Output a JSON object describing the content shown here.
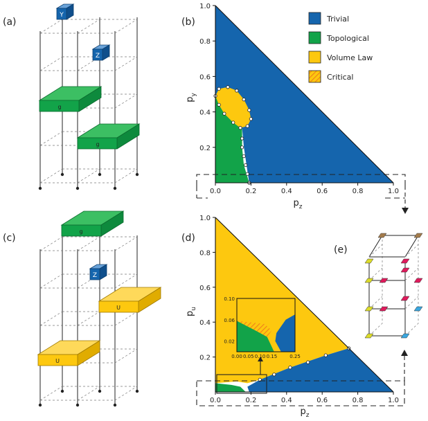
{
  "panel_labels": {
    "a": "(a)",
    "b": "(b)",
    "c": "(c)",
    "d": "(d)",
    "e": "(e)"
  },
  "circuit_a": {
    "gate_y": "Y",
    "gate_z": "Z",
    "gate_g1": "g",
    "gate_g2": "g"
  },
  "circuit_c": {
    "gate_g": "g",
    "gate_z": "Z",
    "gate_u1": "U",
    "gate_u2": "U"
  },
  "legend": {
    "items": [
      {
        "label": "Trivial",
        "color": "#1565ad"
      },
      {
        "label": "Topological",
        "color": "#12a349"
      },
      {
        "label": "Volume Law",
        "color": "#fdc80f"
      },
      {
        "label": "Critical",
        "color": "#f9a21b",
        "hatched": true
      }
    ]
  },
  "chart_data": [
    {
      "type": "area",
      "panel": "b",
      "xlabel": "p_z",
      "ylabel": "p_y",
      "xlim": [
        0,
        1
      ],
      "ylim": [
        0,
        1
      ],
      "x_ticks": [
        "0.0",
        "0.2",
        "0.4",
        "0.6",
        "0.8",
        "1.0"
      ],
      "y_ticks": [
        "0.2",
        "0.4",
        "0.6",
        "0.8",
        "1.0"
      ],
      "regions": [
        {
          "name": "Trivial",
          "color": "#1565ad",
          "points": [
            [
              0,
              1
            ],
            [
              1,
              0
            ],
            [
              0.19,
              0
            ],
            [
              0.16,
              0.2
            ],
            [
              0.15,
              0.31
            ],
            [
              0.12,
              0.37
            ],
            [
              0.08,
              0.42
            ],
            [
              0.04,
              0.45
            ],
            [
              0,
              0.49
            ]
          ]
        },
        {
          "name": "Topological",
          "color": "#12a349",
          "points": [
            [
              0,
              0
            ],
            [
              0.19,
              0
            ],
            [
              0.16,
              0.1
            ],
            [
              0.15,
              0.2
            ],
            [
              0.15,
              0.32
            ],
            [
              0.12,
              0.37
            ],
            [
              0.06,
              0.43
            ],
            [
              0,
              0.49
            ]
          ]
        },
        {
          "name": "Volume Law",
          "color": "#fdc80f",
          "points": [
            [
              0,
              0.49
            ],
            [
              0.02,
              0.53
            ],
            [
              0.07,
              0.54
            ],
            [
              0.12,
              0.52
            ],
            [
              0.16,
              0.47
            ],
            [
              0.19,
              0.41
            ],
            [
              0.2,
              0.36
            ],
            [
              0.18,
              0.32
            ],
            [
              0.14,
              0.31
            ],
            [
              0.1,
              0.34
            ],
            [
              0.05,
              0.39
            ],
            [
              0.02,
              0.44
            ]
          ]
        }
      ],
      "boundary_points": [
        [
          0,
          0.49
        ],
        [
          0.02,
          0.53
        ],
        [
          0.07,
          0.54
        ],
        [
          0.12,
          0.52
        ],
        [
          0.16,
          0.47
        ],
        [
          0.19,
          0.41
        ],
        [
          0.2,
          0.36
        ],
        [
          0.18,
          0.32
        ],
        [
          0.14,
          0.31
        ],
        [
          0.1,
          0.34
        ],
        [
          0.05,
          0.39
        ],
        [
          0.02,
          0.44
        ],
        [
          0.15,
          0.25
        ],
        [
          0.15,
          0.2
        ],
        [
          0.16,
          0.15
        ],
        [
          0.17,
          0.1
        ],
        [
          0.18,
          0.05
        ],
        [
          0.19,
          0
        ]
      ]
    },
    {
      "type": "area",
      "panel": "d",
      "xlabel": "p_z",
      "ylabel": "p_u",
      "xlim": [
        0,
        1
      ],
      "ylim": [
        0,
        1
      ],
      "x_ticks": [
        "0.0",
        "0.2",
        "0.4",
        "0.6",
        "0.8",
        "1.0"
      ],
      "y_ticks": [
        "0.2",
        "0.4",
        "0.6",
        "0.8",
        "1.0"
      ],
      "regions": [
        {
          "name": "Volume Law",
          "color": "#fdc80f",
          "points": [
            [
              0,
              1
            ],
            [
              0.75,
              0.25
            ],
            [
              0.62,
              0.21
            ],
            [
              0.42,
              0.14
            ],
            [
              0.25,
              0.07
            ],
            [
              0.18,
              0.05
            ],
            [
              0.12,
              0.06
            ],
            [
              0,
              0.05
            ]
          ]
        },
        {
          "name": "Trivial",
          "color": "#1565ad",
          "points": [
            [
              0.75,
              0.25
            ],
            [
              1,
              0
            ],
            [
              0.19,
              0
            ],
            [
              0.18,
              0.03
            ],
            [
              0.25,
              0.07
            ],
            [
              0.42,
              0.14
            ],
            [
              0.62,
              0.21
            ]
          ]
        },
        {
          "name": "Topological",
          "color": "#12a349",
          "points": [
            [
              0,
              0
            ],
            [
              0.17,
              0
            ],
            [
              0.14,
              0.03
            ],
            [
              0.09,
              0.04
            ],
            [
              0,
              0.05
            ]
          ]
        }
      ],
      "boundary_points": [
        [
          0.75,
          0.25
        ],
        [
          0.62,
          0.21
        ],
        [
          0.52,
          0.17
        ],
        [
          0.42,
          0.14
        ],
        [
          0.33,
          0.1
        ],
        [
          0.25,
          0.07
        ]
      ],
      "inset": {
        "xlim": [
          0,
          0.25
        ],
        "ylim": [
          0,
          0.1
        ],
        "x_ticks": [
          "0.00",
          "0.05",
          "0.10",
          "0.15",
          "0.20",
          "0.25"
        ],
        "y_ticks": [
          "0.02",
          "0.04",
          "0.06",
          "0.08",
          "0.10"
        ]
      }
    }
  ],
  "lattice_e": {
    "site_colors": [
      "#a47c4c",
      "#dcdc2a",
      "#e01a5c",
      "#3aa7df"
    ]
  }
}
